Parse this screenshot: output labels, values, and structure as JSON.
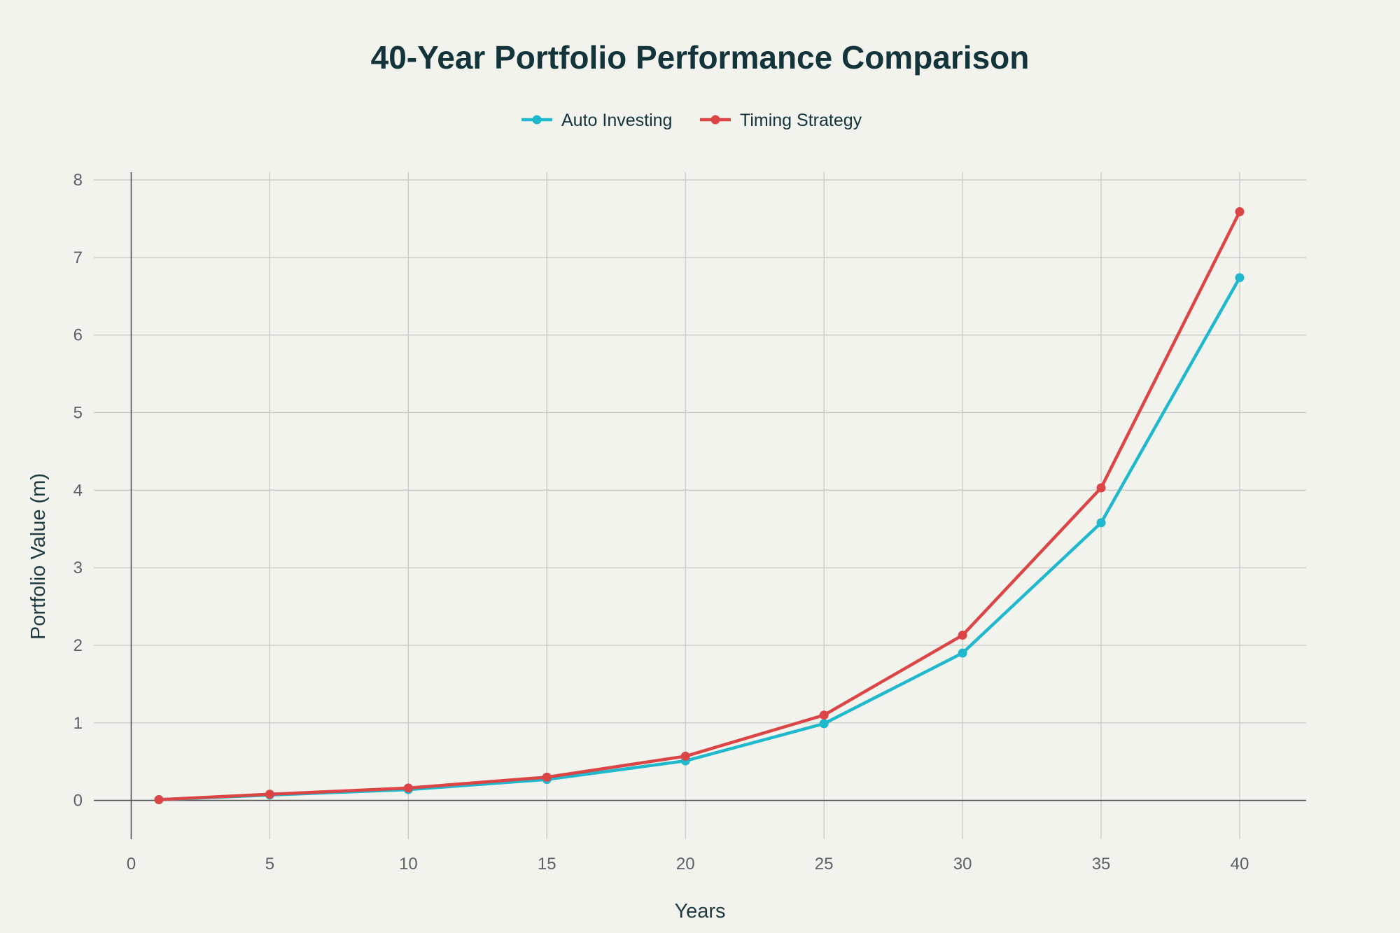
{
  "chart_data": {
    "type": "line",
    "title": "40-Year Portfolio Performance Comparison",
    "xlabel": "Years",
    "ylabel": "Portfolio Value (m)",
    "xlim": [
      -1.35,
      42.4
    ],
    "ylim": [
      -0.5,
      8.1
    ],
    "xticks": [
      0,
      5,
      10,
      15,
      20,
      25,
      30,
      35,
      40
    ],
    "yticks": [
      0,
      1,
      2,
      3,
      4,
      5,
      6,
      7,
      8
    ],
    "grid": true,
    "legend_position": "top-center",
    "x": [
      1,
      5,
      10,
      15,
      20,
      25,
      30,
      35,
      40
    ],
    "series": [
      {
        "name": "Auto Investing",
        "color": "#1fb8cd",
        "values": [
          0.01,
          0.07,
          0.14,
          0.27,
          0.51,
          0.99,
          1.9,
          3.58,
          6.74
        ]
      },
      {
        "name": "Timing Strategy",
        "color": "#db4545",
        "values": [
          0.01,
          0.08,
          0.16,
          0.3,
          0.57,
          1.1,
          2.13,
          4.03,
          7.59
        ]
      }
    ]
  }
}
